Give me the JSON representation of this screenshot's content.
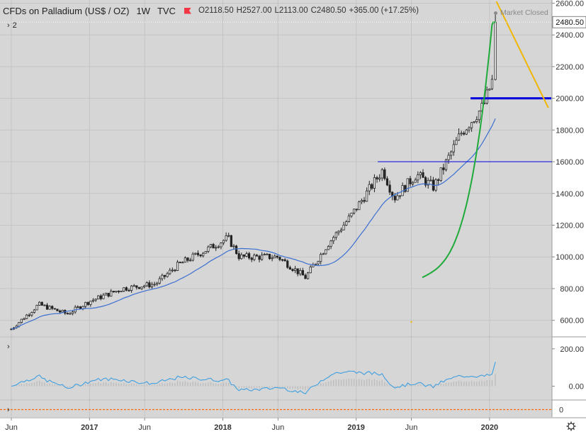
{
  "header": {
    "symbol": "CFDs on Palladium (US$ / OZ)",
    "interval": "1W",
    "source": "TVC",
    "open": "O2118.50",
    "high": "H2527.00",
    "low": "L2113.00",
    "close": "C2480.50",
    "change": "+365.00 (+17.25%)",
    "market_status": "Market Closed",
    "indicator_count": "2"
  },
  "colors": {
    "candle_up": "#2e9e3e",
    "candle_down": "#222222",
    "moving_average": "#3b6fd1",
    "curve": "#1faa3a",
    "resistance_line": "#0000dd",
    "trend_line": "#f2b600",
    "oscillator": "#3f9fe0",
    "zero_line": "#ff6a00"
  },
  "chart_data": {
    "type": "candlestick",
    "interval": "weekly",
    "y_range": [
      500,
      2620
    ],
    "y_ticks": [
      "2600.00",
      "2400.00",
      "2200.00",
      "2000.00",
      "1800.00",
      "1600.00",
      "1400.00",
      "1200.00",
      "1000.00",
      "800.00",
      "600.00"
    ],
    "last_price_label": "2480.50",
    "x_tick_labels": [
      "Jun",
      "2017",
      "Jun",
      "2018",
      "Jun",
      "2019",
      "Jun",
      "2020"
    ],
    "price_anchors": [
      {
        "date": "2016-06-01",
        "close": 545
      },
      {
        "date": "2016-08-15",
        "close": 700
      },
      {
        "date": "2016-11-01",
        "close": 640
      },
      {
        "date": "2017-01-01",
        "close": 720
      },
      {
        "date": "2017-04-01",
        "close": 800
      },
      {
        "date": "2017-07-01",
        "close": 830
      },
      {
        "date": "2017-09-01",
        "close": 950
      },
      {
        "date": "2017-12-15",
        "close": 1080
      },
      {
        "date": "2018-01-15",
        "close": 1120
      },
      {
        "date": "2018-02-15",
        "close": 1000
      },
      {
        "date": "2018-06-01",
        "close": 1000
      },
      {
        "date": "2018-08-15",
        "close": 870
      },
      {
        "date": "2018-10-15",
        "close": 1080
      },
      {
        "date": "2018-12-15",
        "close": 1250
      },
      {
        "date": "2019-03-15",
        "close": 1550
      },
      {
        "date": "2019-04-15",
        "close": 1370
      },
      {
        "date": "2019-06-15",
        "close": 1520
      },
      {
        "date": "2019-08-01",
        "close": 1440
      },
      {
        "date": "2019-10-15",
        "close": 1780
      },
      {
        "date": "2019-12-15",
        "close": 1950
      },
      {
        "date": "2020-01-10",
        "close": 2120
      },
      {
        "date": "2020-01-17",
        "close": 2480.5
      }
    ],
    "last_candle": {
      "open": 2118.5,
      "high": 2527.0,
      "low": 2113.0,
      "close": 2480.5
    },
    "horizontal_levels": [
      {
        "price": 2000,
        "style": "thick"
      },
      {
        "price": 1600,
        "style": "thin"
      }
    ],
    "oscillator_pane": {
      "y_ticks": [
        "200.00",
        "0.00"
      ],
      "y_range": [
        -70,
        260
      ]
    },
    "third_pane": {
      "y_ticks": [
        "0"
      ]
    }
  }
}
